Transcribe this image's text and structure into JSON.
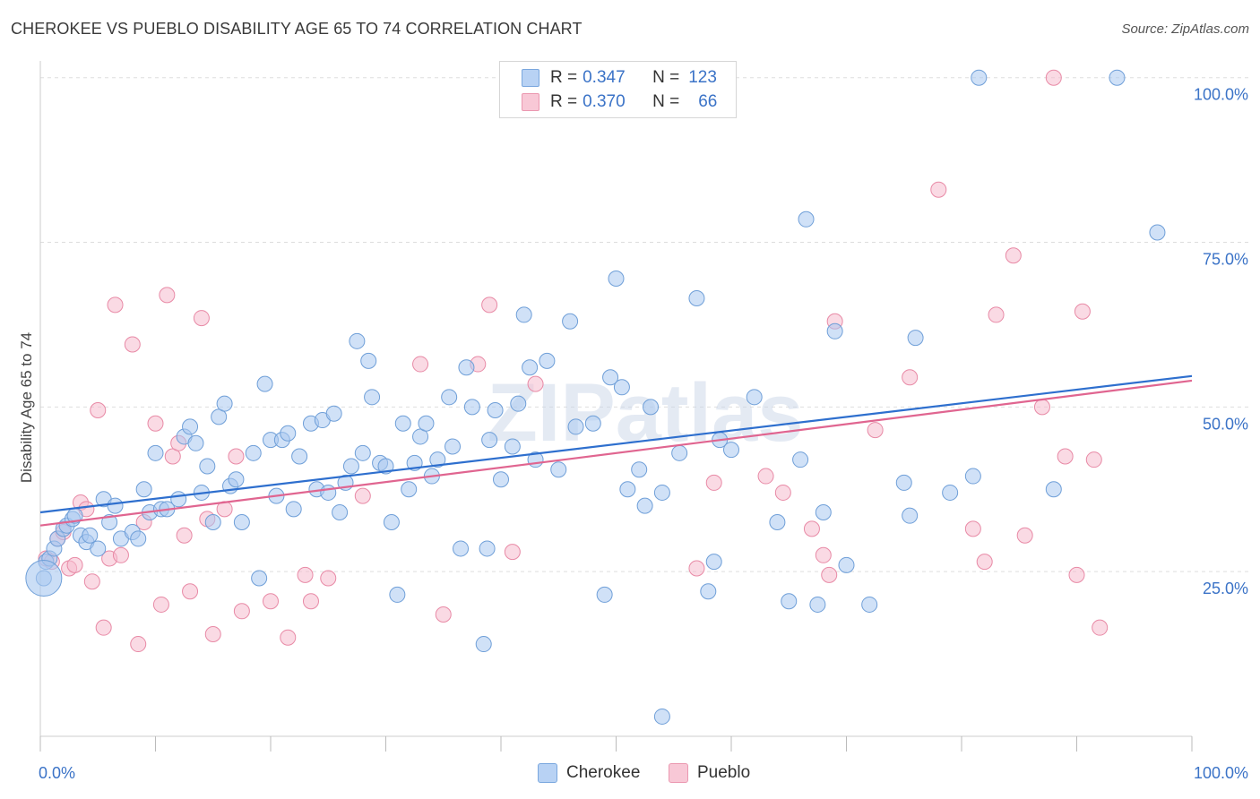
{
  "title": "CHEROKEE VS PUEBLO DISABILITY AGE 65 TO 74 CORRELATION CHART",
  "source": "Source: ZipAtlas.com",
  "watermark": "ZIPatlas",
  "legend": {
    "rows": [
      {
        "r_label": "R =",
        "r_value": "0.347",
        "n_label": "N =",
        "n_value": "123"
      },
      {
        "r_label": "R =",
        "r_value": "0.370",
        "n_label": "N =",
        "n_value": "66"
      }
    ]
  },
  "colors": {
    "cherokee_fill": "#a9c8f0",
    "cherokee_stroke": "#6f9fd8",
    "cherokee_line": "#2e6fce",
    "pueblo_fill": "#f5bccd",
    "pueblo_stroke": "#e88aa6",
    "pueblo_line": "#e06590",
    "axis_text": "#3b73c7",
    "grid": "#dddddd"
  },
  "chart_data": {
    "type": "scatter",
    "title": "CHEROKEE VS PUEBLO DISABILITY AGE 65 TO 74 CORRELATION CHART",
    "xlabel": "",
    "ylabel": "Disability Age 65 to 74",
    "xlim": [
      0,
      100
    ],
    "ylim": [
      0,
      102
    ],
    "x_tick_labels": [
      "0.0%",
      "100.0%"
    ],
    "y_tick_labels": [
      "25.0%",
      "50.0%",
      "75.0%",
      "100.0%"
    ],
    "y_ticks": [
      25,
      50,
      75,
      100
    ],
    "legend_position": "top-center",
    "grid": true,
    "series": [
      {
        "name": "Cherokee",
        "r": 0.347,
        "n": 123,
        "trend": {
          "x0": 0,
          "y0": 34.0,
          "x1": 100,
          "y1": 54.7
        },
        "points": [
          [
            0.3,
            24.0
          ],
          [
            0.5,
            26.5
          ],
          [
            0.8,
            27.0
          ],
          [
            1.2,
            28.5
          ],
          [
            1.5,
            30.0
          ],
          [
            2.0,
            31.5
          ],
          [
            2.3,
            32.0
          ],
          [
            2.8,
            33.0
          ],
          [
            3.0,
            33.5
          ],
          [
            3.5,
            30.5
          ],
          [
            4.0,
            29.5
          ],
          [
            4.3,
            30.5
          ],
          [
            5.0,
            28.5
          ],
          [
            5.5,
            36.0
          ],
          [
            6.0,
            32.5
          ],
          [
            6.5,
            35.0
          ],
          [
            7.0,
            30.0
          ],
          [
            8.0,
            31.0
          ],
          [
            8.5,
            30.0
          ],
          [
            9.0,
            37.5
          ],
          [
            9.5,
            34.0
          ],
          [
            10.0,
            43.0
          ],
          [
            10.5,
            34.5
          ],
          [
            11.0,
            34.5
          ],
          [
            12.0,
            36.0
          ],
          [
            12.5,
            45.5
          ],
          [
            13.0,
            47.0
          ],
          [
            13.5,
            44.5
          ],
          [
            14.0,
            37.0
          ],
          [
            14.5,
            41.0
          ],
          [
            15.0,
            32.5
          ],
          [
            15.5,
            48.5
          ],
          [
            16.0,
            50.5
          ],
          [
            16.5,
            38.0
          ],
          [
            17.0,
            39.0
          ],
          [
            17.5,
            32.5
          ],
          [
            18.5,
            43.0
          ],
          [
            19.0,
            24.0
          ],
          [
            19.5,
            53.5
          ],
          [
            20.0,
            45.0
          ],
          [
            20.5,
            36.5
          ],
          [
            21.0,
            45.0
          ],
          [
            21.5,
            46.0
          ],
          [
            22.0,
            34.5
          ],
          [
            22.5,
            42.5
          ],
          [
            23.5,
            47.5
          ],
          [
            24.0,
            37.5
          ],
          [
            24.5,
            48.0
          ],
          [
            25.0,
            37.0
          ],
          [
            25.5,
            49.0
          ],
          [
            26.0,
            34.0
          ],
          [
            26.5,
            38.5
          ],
          [
            27.0,
            41.0
          ],
          [
            27.5,
            60.0
          ],
          [
            28.0,
            43.0
          ],
          [
            28.5,
            57.0
          ],
          [
            28.8,
            51.5
          ],
          [
            29.5,
            41.5
          ],
          [
            30.0,
            41.0
          ],
          [
            30.5,
            32.5
          ],
          [
            31.0,
            21.5
          ],
          [
            31.5,
            47.5
          ],
          [
            32.0,
            37.5
          ],
          [
            32.5,
            41.5
          ],
          [
            33.0,
            45.5
          ],
          [
            33.5,
            47.5
          ],
          [
            34.0,
            39.5
          ],
          [
            34.5,
            42.0
          ],
          [
            35.5,
            51.5
          ],
          [
            35.8,
            44.0
          ],
          [
            36.5,
            28.5
          ],
          [
            37.0,
            56.0
          ],
          [
            37.5,
            50.0
          ],
          [
            38.5,
            14.0
          ],
          [
            38.8,
            28.5
          ],
          [
            39.0,
            45.0
          ],
          [
            39.5,
            49.5
          ],
          [
            40.0,
            39.0
          ],
          [
            41.0,
            44.0
          ],
          [
            41.5,
            50.5
          ],
          [
            42.0,
            64.0
          ],
          [
            42.5,
            56.0
          ],
          [
            43.0,
            42.0
          ],
          [
            44.0,
            57.0
          ],
          [
            45.0,
            40.5
          ],
          [
            46.0,
            63.0
          ],
          [
            46.5,
            47.0
          ],
          [
            48.0,
            47.5
          ],
          [
            49.0,
            21.5
          ],
          [
            49.5,
            54.5
          ],
          [
            50.0,
            69.5
          ],
          [
            50.5,
            53.0
          ],
          [
            51.0,
            37.5
          ],
          [
            52.0,
            40.5
          ],
          [
            52.5,
            35.0
          ],
          [
            53.0,
            50.0
          ],
          [
            54.0,
            37.0
          ],
          [
            55.5,
            43.0
          ],
          [
            57.0,
            66.5
          ],
          [
            58.0,
            22.0
          ],
          [
            58.5,
            26.5
          ],
          [
            59.0,
            45.0
          ],
          [
            60.0,
            43.5
          ],
          [
            62.0,
            51.5
          ],
          [
            64.0,
            32.5
          ],
          [
            65.0,
            20.5
          ],
          [
            66.0,
            42.0
          ],
          [
            66.5,
            78.5
          ],
          [
            67.5,
            20.0
          ],
          [
            68.0,
            34.0
          ],
          [
            69.0,
            61.5
          ],
          [
            70.0,
            26.0
          ],
          [
            72.0,
            20.0
          ],
          [
            75.0,
            38.5
          ],
          [
            75.5,
            33.5
          ],
          [
            76.0,
            60.5
          ],
          [
            79.0,
            37.0
          ],
          [
            81.0,
            39.5
          ],
          [
            81.5,
            100.0
          ],
          [
            88.0,
            37.5
          ],
          [
            93.5,
            100.0
          ],
          [
            97.0,
            76.5
          ],
          [
            54.0,
            3.0
          ]
        ]
      },
      {
        "name": "Pueblo",
        "r": 0.37,
        "n": 66,
        "trend": {
          "x0": 0,
          "y0": 32.0,
          "x1": 100,
          "y1": 54.0
        },
        "points": [
          [
            0.5,
            27.0
          ],
          [
            1.0,
            26.5
          ],
          [
            1.5,
            30.0
          ],
          [
            2.0,
            31.0
          ],
          [
            2.5,
            25.5
          ],
          [
            3.0,
            26.0
          ],
          [
            3.5,
            35.5
          ],
          [
            4.0,
            34.5
          ],
          [
            4.5,
            23.5
          ],
          [
            5.0,
            49.5
          ],
          [
            5.5,
            16.5
          ],
          [
            6.0,
            27.0
          ],
          [
            6.5,
            65.5
          ],
          [
            7.0,
            27.5
          ],
          [
            8.0,
            59.5
          ],
          [
            8.5,
            14.0
          ],
          [
            9.0,
            32.5
          ],
          [
            10.0,
            47.5
          ],
          [
            10.5,
            20.0
          ],
          [
            11.0,
            67.0
          ],
          [
            11.5,
            42.5
          ],
          [
            12.0,
            44.5
          ],
          [
            12.5,
            30.5
          ],
          [
            13.0,
            22.0
          ],
          [
            14.0,
            63.5
          ],
          [
            14.5,
            33.0
          ],
          [
            15.0,
            15.5
          ],
          [
            16.0,
            34.5
          ],
          [
            17.0,
            42.5
          ],
          [
            17.5,
            19.0
          ],
          [
            20.0,
            20.5
          ],
          [
            21.5,
            15.0
          ],
          [
            23.0,
            24.5
          ],
          [
            23.5,
            20.5
          ],
          [
            25.0,
            24.0
          ],
          [
            28.0,
            36.5
          ],
          [
            33.0,
            56.5
          ],
          [
            35.0,
            18.5
          ],
          [
            38.0,
            56.5
          ],
          [
            39.0,
            65.5
          ],
          [
            41.0,
            28.0
          ],
          [
            43.0,
            53.5
          ],
          [
            46.0,
            100.0
          ],
          [
            57.0,
            25.5
          ],
          [
            58.5,
            38.5
          ],
          [
            63.0,
            39.5
          ],
          [
            64.5,
            37.0
          ],
          [
            67.0,
            31.5
          ],
          [
            68.0,
            27.5
          ],
          [
            68.5,
            24.5
          ],
          [
            69.0,
            63.0
          ],
          [
            72.5,
            46.5
          ],
          [
            75.5,
            54.5
          ],
          [
            78.0,
            83.0
          ],
          [
            81.0,
            31.5
          ],
          [
            82.0,
            26.5
          ],
          [
            83.0,
            64.0
          ],
          [
            84.5,
            73.0
          ],
          [
            85.5,
            30.5
          ],
          [
            87.0,
            50.0
          ],
          [
            88.0,
            100.0
          ],
          [
            89.0,
            42.5
          ],
          [
            90.0,
            24.5
          ],
          [
            90.5,
            64.5
          ],
          [
            91.5,
            42.0
          ],
          [
            92.0,
            16.5
          ]
        ]
      }
    ]
  },
  "bottom_legend": {
    "items": [
      {
        "label": "Cherokee"
      },
      {
        "label": "Pueblo"
      }
    ]
  }
}
